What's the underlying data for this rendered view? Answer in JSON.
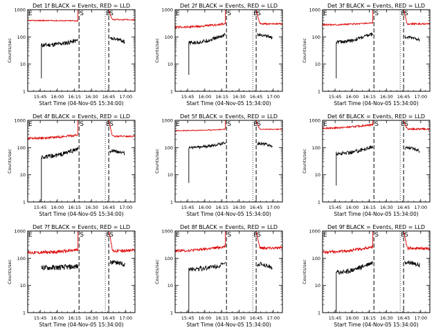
{
  "layout": {
    "columns": 3,
    "rows": 3
  },
  "colors": {
    "events": "#000000",
    "lld": "#dd0000",
    "axes": "#000000"
  },
  "chart_data": [
    {
      "type": "line",
      "title": "Det 1f BLACK = Events, RED = LLD",
      "xlabel": "Start Time (04-Nov-05 15:34:00)",
      "ylabel": "Counts/sec",
      "ylim": [
        1,
        1000
      ],
      "yscale": "log",
      "xlim": [
        "15:34",
        "17:08"
      ],
      "xticks": [
        "15:45",
        "16:00",
        "16:15",
        "16:30",
        "16:45",
        "17:00"
      ],
      "yticks": [
        "1",
        "10",
        "100",
        "1000"
      ],
      "markers": [
        {
          "label": "E",
          "time": "15:34",
          "style": "dotted"
        },
        {
          "label": "S",
          "time": "16:19",
          "style": "dashed"
        },
        {
          "label": "E",
          "time": "16:42",
          "style": "dotted"
        },
        {
          "label": "S",
          "time": "16:45",
          "style": "dashed"
        }
      ],
      "series": [
        {
          "name": "Events",
          "color": "#000000",
          "segments": [
            {
              "x0": "15:46",
              "x1": "16:18",
              "y0": 50,
              "y1": 75,
              "noise": 0.08,
              "start": 3
            },
            {
              "x0": "16:46",
              "x1": "16:59",
              "y0": 85,
              "y1": 65,
              "noise": 0.06
            }
          ]
        },
        {
          "name": "LLD",
          "color": "#dd0000",
          "segments": [
            {
              "x0": "15:34",
              "x1": "16:18",
              "y0": 400,
              "y1": 390,
              "noise": 0.02,
              "rise": 1000
            },
            {
              "x0": "16:45",
              "x1": "17:08",
              "y0": 1000,
              "y1": 430,
              "noise": 0.02,
              "decay": true
            }
          ]
        }
      ]
    },
    {
      "type": "line",
      "title": "Det 2f BLACK = Events, RED = LLD",
      "xlabel": "Start Time (04-Nov-05 15:34:00)",
      "ylabel": "Counts/sec",
      "ylim": [
        1,
        1000
      ],
      "yscale": "log",
      "xlim": [
        "15:34",
        "17:08"
      ],
      "xticks": [
        "15:45",
        "16:00",
        "16:15",
        "16:30",
        "16:45",
        "17:00"
      ],
      "yticks": [
        "1",
        "10",
        "100",
        "1000"
      ],
      "markers": [
        {
          "label": "E",
          "time": "15:34",
          "style": "dotted"
        },
        {
          "label": "S",
          "time": "16:19",
          "style": "dashed"
        },
        {
          "label": "E",
          "time": "16:42",
          "style": "dotted"
        },
        {
          "label": "S",
          "time": "16:45",
          "style": "dashed"
        }
      ],
      "series": [
        {
          "name": "Events",
          "color": "#000000",
          "segments": [
            {
              "x0": "15:46",
              "x1": "16:18",
              "y0": 60,
              "y1": 120,
              "noise": 0.07,
              "start": 4
            },
            {
              "x0": "16:46",
              "x1": "16:59",
              "y0": 120,
              "y1": 90,
              "noise": 0.06
            }
          ]
        },
        {
          "name": "LLD",
          "color": "#dd0000",
          "segments": [
            {
              "x0": "15:34",
              "x1": "16:18",
              "y0": 230,
              "y1": 300,
              "noise": 0.04,
              "rise": 1000
            },
            {
              "x0": "16:45",
              "x1": "17:08",
              "y0": 1000,
              "y1": 300,
              "noise": 0.03,
              "decay": true
            }
          ]
        }
      ]
    },
    {
      "type": "line",
      "title": "Det 3f BLACK = Events, RED = LLD",
      "xlabel": "Start Time (04-Nov-05 15:34:00)",
      "ylabel": "Counts/sec",
      "ylim": [
        1,
        1000
      ],
      "yscale": "log",
      "xlim": [
        "15:34",
        "17:08"
      ],
      "xticks": [
        "15:45",
        "16:00",
        "16:15",
        "16:30",
        "16:45",
        "17:00"
      ],
      "yticks": [
        "1",
        "10",
        "100",
        "1000"
      ],
      "markers": [
        {
          "label": "E",
          "time": "15:34",
          "style": "dotted"
        },
        {
          "label": "S",
          "time": "16:19",
          "style": "dashed"
        },
        {
          "label": "E",
          "time": "16:42",
          "style": "dotted"
        },
        {
          "label": "S",
          "time": "16:45",
          "style": "dashed"
        }
      ],
      "series": [
        {
          "name": "Events",
          "color": "#000000",
          "segments": [
            {
              "x0": "15:46",
              "x1": "16:18",
              "y0": 65,
              "y1": 130,
              "noise": 0.07,
              "start": 3
            },
            {
              "x0": "16:46",
              "x1": "16:59",
              "y0": 95,
              "y1": 80,
              "noise": 0.06
            }
          ]
        },
        {
          "name": "LLD",
          "color": "#dd0000",
          "segments": [
            {
              "x0": "15:34",
              "x1": "16:18",
              "y0": 280,
              "y1": 330,
              "noise": 0.03,
              "rise": 1000
            },
            {
              "x0": "16:45",
              "x1": "17:08",
              "y0": 1000,
              "y1": 300,
              "noise": 0.03,
              "decay": true
            }
          ]
        }
      ]
    },
    {
      "type": "line",
      "title": "Det 4f BLACK = Events, RED = LLD",
      "xlabel": "Start Time (04-Nov-05 15:34:00)",
      "ylabel": "Counts/sec",
      "ylim": [
        1,
        1000
      ],
      "yscale": "log",
      "xlim": [
        "15:34",
        "17:08"
      ],
      "xticks": [
        "15:45",
        "16:00",
        "16:15",
        "16:30",
        "16:45",
        "17:00"
      ],
      "yticks": [
        "1",
        "10",
        "100",
        "1000"
      ],
      "markers": [
        {
          "label": "E",
          "time": "15:34",
          "style": "dotted"
        },
        {
          "label": "S",
          "time": "16:19",
          "style": "dashed"
        },
        {
          "label": "E",
          "time": "16:42",
          "style": "dotted"
        },
        {
          "label": "S",
          "time": "16:45",
          "style": "dashed"
        }
      ],
      "series": [
        {
          "name": "Events",
          "color": "#000000",
          "segments": [
            {
              "x0": "15:46",
              "x1": "16:18",
              "y0": 45,
              "y1": 90,
              "noise": 0.08,
              "start": 1
            },
            {
              "x0": "16:46",
              "x1": "16:59",
              "y0": 75,
              "y1": 60,
              "noise": 0.06
            }
          ]
        },
        {
          "name": "LLD",
          "color": "#dd0000",
          "segments": [
            {
              "x0": "15:34",
              "x1": "16:18",
              "y0": 220,
              "y1": 290,
              "noise": 0.04,
              "rise": 1000
            },
            {
              "x0": "16:45",
              "x1": "17:08",
              "y0": 1000,
              "y1": 260,
              "noise": 0.03,
              "decay": true
            }
          ]
        }
      ]
    },
    {
      "type": "line",
      "title": "Det 5f BLACK = Events, RED = LLD",
      "xlabel": "Start Time (04-Nov-05 15:34:00)",
      "ylabel": "Counts/sec",
      "ylim": [
        1,
        1000
      ],
      "yscale": "log",
      "xlim": [
        "15:34",
        "17:08"
      ],
      "xticks": [
        "15:45",
        "16:00",
        "16:15",
        "16:30",
        "16:45",
        "17:00"
      ],
      "yticks": [
        "1",
        "10",
        "100",
        "1000"
      ],
      "markers": [
        {
          "label": "E",
          "time": "15:34",
          "style": "dotted"
        },
        {
          "label": "S",
          "time": "16:19",
          "style": "dashed"
        },
        {
          "label": "E",
          "time": "16:42",
          "style": "dotted"
        },
        {
          "label": "S",
          "time": "16:45",
          "style": "dashed"
        }
      ],
      "series": [
        {
          "name": "Events",
          "color": "#000000",
          "segments": [
            {
              "x0": "15:46",
              "x1": "16:18",
              "y0": 100,
              "y1": 150,
              "noise": 0.05,
              "start": 5
            },
            {
              "x0": "16:46",
              "x1": "16:59",
              "y0": 140,
              "y1": 110,
              "noise": 0.05
            }
          ]
        },
        {
          "name": "LLD",
          "color": "#dd0000",
          "segments": [
            {
              "x0": "15:34",
              "x1": "16:18",
              "y0": 420,
              "y1": 470,
              "noise": 0.015,
              "rise": 1000
            },
            {
              "x0": "16:45",
              "x1": "17:08",
              "y0": 1000,
              "y1": 470,
              "noise": 0.015,
              "decay": true
            }
          ]
        }
      ]
    },
    {
      "type": "line",
      "title": "Det 6f BLACK = Events, RED = LLD",
      "xlabel": "Start Time (04-Nov-05 15:34:00)",
      "ylabel": "Counts/sec",
      "ylim": [
        1,
        1000
      ],
      "yscale": "log",
      "xlim": [
        "15:34",
        "17:08"
      ],
      "xticks": [
        "15:45",
        "16:00",
        "16:15",
        "16:30",
        "16:45",
        "17:00"
      ],
      "yticks": [
        "1",
        "10",
        "100",
        "1000"
      ],
      "markers": [
        {
          "label": "E",
          "time": "15:34",
          "style": "dotted"
        },
        {
          "label": "S",
          "time": "16:19",
          "style": "dashed"
        },
        {
          "label": "E",
          "time": "16:42",
          "style": "dotted"
        },
        {
          "label": "S",
          "time": "16:45",
          "style": "dashed"
        }
      ],
      "series": [
        {
          "name": "Events",
          "color": "#000000",
          "segments": [
            {
              "x0": "15:46",
              "x1": "16:18",
              "y0": 60,
              "y1": 110,
              "noise": 0.07,
              "start": 4
            },
            {
              "x0": "16:46",
              "x1": "16:59",
              "y0": 95,
              "y1": 75,
              "noise": 0.06
            }
          ]
        },
        {
          "name": "LLD",
          "color": "#dd0000",
          "segments": [
            {
              "x0": "15:34",
              "x1": "16:18",
              "y0": 520,
              "y1": 700,
              "noise": 0.03,
              "rise": 1000
            },
            {
              "x0": "16:45",
              "x1": "17:08",
              "y0": 1000,
              "y1": 480,
              "noise": 0.03,
              "decay": true
            }
          ]
        }
      ]
    },
    {
      "type": "line",
      "title": "Det 7f BLACK = Events, RED = LLD",
      "xlabel": "Start Time (04-Nov-05 15:34:00)",
      "ylabel": "Counts/sec",
      "ylim": [
        1,
        1000
      ],
      "yscale": "log",
      "xlim": [
        "15:34",
        "17:08"
      ],
      "xticks": [
        "15:45",
        "16:00",
        "16:15",
        "16:30",
        "16:45",
        "17:00"
      ],
      "yticks": [
        "1",
        "10",
        "100",
        "1000"
      ],
      "markers": [
        {
          "label": "E",
          "time": "15:34",
          "style": "dotted"
        },
        {
          "label": "S",
          "time": "16:19",
          "style": "dashed"
        },
        {
          "label": "E",
          "time": "16:42",
          "style": "dotted"
        },
        {
          "label": "S",
          "time": "16:45",
          "style": "dashed"
        }
      ],
      "series": [
        {
          "name": "Events",
          "color": "#000000",
          "segments": [
            {
              "x0": "15:46",
              "x1": "16:18",
              "y0": 45,
              "y1": 50,
              "noise": 0.1
            },
            {
              "x0": "16:46",
              "x1": "16:59",
              "y0": 70,
              "y1": 60,
              "noise": 0.08
            }
          ]
        },
        {
          "name": "LLD",
          "color": "#dd0000",
          "segments": [
            {
              "x0": "15:34",
              "x1": "16:18",
              "y0": 160,
              "y1": 200,
              "noise": 0.06,
              "rise": 1000
            },
            {
              "x0": "16:45",
              "x1": "17:08",
              "y0": 1000,
              "y1": 190,
              "noise": 0.06,
              "decay": true
            }
          ]
        }
      ]
    },
    {
      "type": "line",
      "title": "Det 8f BLACK = Events, RED = LLD",
      "xlabel": "Start Time (04-Nov-05 15:34:00)",
      "ylabel": "Counts/sec",
      "ylim": [
        1,
        1000
      ],
      "yscale": "log",
      "xlim": [
        "15:34",
        "17:08"
      ],
      "xticks": [
        "15:45",
        "16:00",
        "16:15",
        "16:30",
        "16:45",
        "17:00"
      ],
      "yticks": [
        "1",
        "10",
        "100",
        "1000"
      ],
      "markers": [
        {
          "label": "E",
          "time": "15:34",
          "style": "dotted"
        },
        {
          "label": "S",
          "time": "16:19",
          "style": "dashed"
        },
        {
          "label": "E",
          "time": "16:42",
          "style": "dotted"
        },
        {
          "label": "S",
          "time": "16:45",
          "style": "dashed"
        }
      ],
      "series": [
        {
          "name": "Events",
          "color": "#000000",
          "segments": [
            {
              "x0": "15:46",
              "x1": "16:18",
              "y0": 40,
              "y1": 60,
              "noise": 0.09,
              "start": 1
            },
            {
              "x0": "16:46",
              "x1": "16:59",
              "y0": 60,
              "y1": 45,
              "noise": 0.08
            }
          ]
        },
        {
          "name": "LLD",
          "color": "#dd0000",
          "segments": [
            {
              "x0": "15:34",
              "x1": "16:18",
              "y0": 190,
              "y1": 270,
              "noise": 0.05,
              "rise": 1000
            },
            {
              "x0": "16:45",
              "x1": "17:08",
              "y0": 1000,
              "y1": 240,
              "noise": 0.05,
              "decay": true
            }
          ]
        }
      ]
    },
    {
      "type": "line",
      "title": "Det 9f BLACK = Events, RED = LLD",
      "xlabel": "Start Time (04-Nov-05 15:34:00)",
      "ylabel": "Counts/sec",
      "ylim": [
        1,
        1000
      ],
      "yscale": "log",
      "xlim": [
        "15:34",
        "17:08"
      ],
      "xticks": [
        "15:45",
        "16:00",
        "16:15",
        "16:30",
        "16:45",
        "17:00"
      ],
      "yticks": [
        "1",
        "10",
        "100",
        "1000"
      ],
      "markers": [
        {
          "label": "E",
          "time": "15:34",
          "style": "dotted"
        },
        {
          "label": "S",
          "time": "16:19",
          "style": "dashed"
        },
        {
          "label": "E",
          "time": "16:42",
          "style": "dotted"
        },
        {
          "label": "S",
          "time": "16:45",
          "style": "dashed"
        }
      ],
      "series": [
        {
          "name": "Events",
          "color": "#000000",
          "segments": [
            {
              "x0": "15:46",
              "x1": "16:18",
              "y0": 30,
              "y1": 70,
              "noise": 0.09,
              "start": 1
            },
            {
              "x0": "16:46",
              "x1": "16:59",
              "y0": 70,
              "y1": 55,
              "noise": 0.08
            }
          ]
        },
        {
          "name": "LLD",
          "color": "#dd0000",
          "segments": [
            {
              "x0": "15:34",
              "x1": "16:18",
              "y0": 170,
              "y1": 260,
              "noise": 0.05,
              "rise": 1000
            },
            {
              "x0": "16:45",
              "x1": "17:08",
              "y0": 1000,
              "y1": 230,
              "noise": 0.05,
              "decay": true
            }
          ]
        }
      ]
    }
  ]
}
